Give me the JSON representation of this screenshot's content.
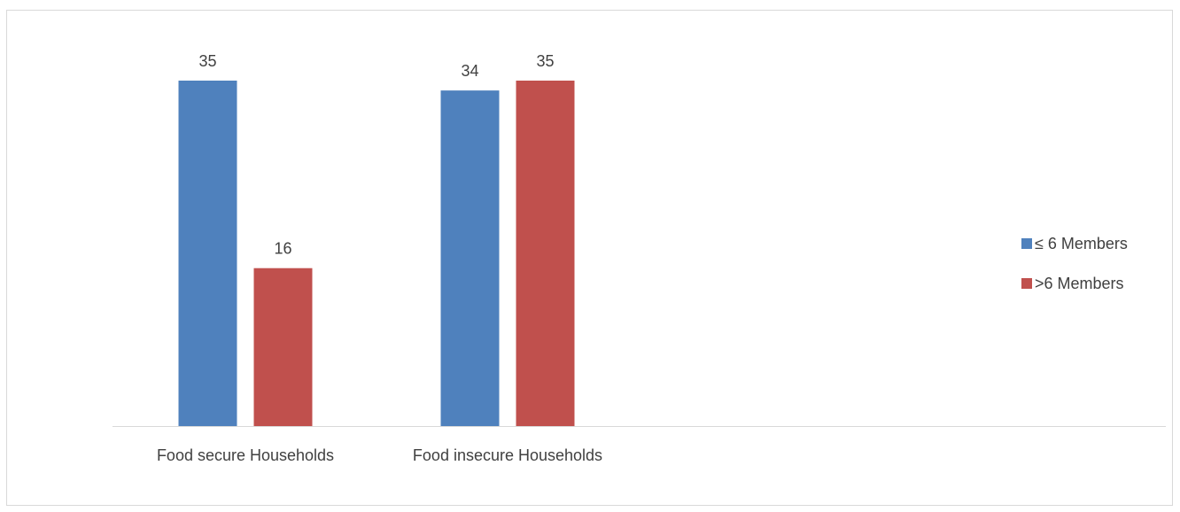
{
  "chart_data": {
    "type": "bar",
    "categories": [
      "Food secure Households",
      "Food insecure Households"
    ],
    "series": [
      {
        "name": "≤ 6 Members",
        "values": [
          35,
          34
        ],
        "color": "#4f81bd"
      },
      {
        "name": ">6 Members",
        "values": [
          16,
          35
        ],
        "color": "#c0504d"
      }
    ],
    "ylim": [
      0,
      35
    ],
    "grid": false,
    "legend_position": "right",
    "axis_color": "#d9d9d9",
    "text_color": "#404040"
  }
}
